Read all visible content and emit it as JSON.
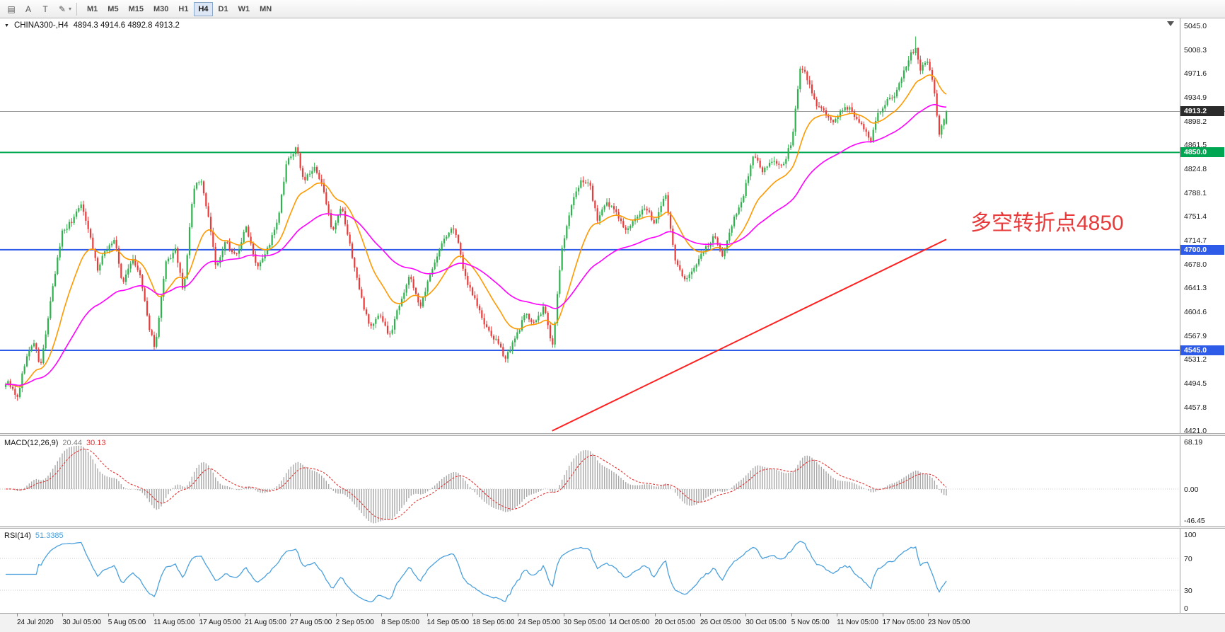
{
  "toolbar": {
    "tools": [
      {
        "id": "chart-windows",
        "glyph": "▤"
      },
      {
        "id": "cursor-text-a",
        "glyph": "A"
      },
      {
        "id": "text-label",
        "glyph": "T"
      },
      {
        "id": "draw-tool",
        "glyph": "✎"
      }
    ],
    "draw_caret": "▾",
    "timeframes": [
      "M1",
      "M5",
      "M15",
      "M30",
      "H1",
      "H4",
      "D1",
      "W1",
      "MN"
    ],
    "active_timeframe": "H4"
  },
  "chart": {
    "marker": "▼",
    "symbol_label": "CHINA300-,H4",
    "ohlc_label": "4894.3 4914.6 4892.8 4913.2",
    "annotation": {
      "text": "多空转折点4850",
      "color": "#E83A3A"
    },
    "price_axis_labels": [
      "5045.0",
      "5008.3",
      "4971.6",
      "4934.9",
      "4898.2",
      "4861.5",
      "4824.8",
      "4788.1",
      "4751.4",
      "4714.7",
      "4678.0",
      "4641.3",
      "4604.6",
      "4567.9",
      "4531.2",
      "4494.5",
      "4457.8",
      "4421.0"
    ],
    "level_chips": [
      {
        "label": "4913.2",
        "price": 4913.2,
        "bg": "#2B2B2B",
        "type": "current-price"
      },
      {
        "label": "4850.0",
        "price": 4850.0,
        "bg": "#00A651",
        "type": "hline"
      },
      {
        "label": "4700.0",
        "price": 4700.0,
        "bg": "#2E5BE8",
        "type": "hline"
      },
      {
        "label": "4545.0",
        "price": 4545.0,
        "bg": "#2E5BE8",
        "type": "hline"
      }
    ]
  },
  "indicators": {
    "macd": {
      "name": "MACD(12,26,9)",
      "value1": "20.44",
      "value2": "30.13",
      "axis_labels": [
        "68.19",
        "0.00",
        "-46.45"
      ]
    },
    "rsi": {
      "name": "RSI(14)",
      "value": "51.3385",
      "axis_labels": [
        "100",
        "70",
        "30",
        "0"
      ]
    }
  },
  "chart_data": {
    "type": "candlestick",
    "symbol": "CHINA300-",
    "timeframe": "H4",
    "last_ohlc": {
      "open": 4894.3,
      "high": 4914.6,
      "low": 4892.8,
      "close": 4913.2
    },
    "y_range": [
      4421.0,
      5045.0
    ],
    "candle_count": 400,
    "last_close": 4913.2,
    "close_path_anchors": [
      [
        0.004,
        4495
      ],
      [
        0.012,
        4468
      ],
      [
        0.021,
        4530
      ],
      [
        0.03,
        4558
      ],
      [
        0.037,
        4518
      ],
      [
        0.05,
        4640
      ],
      [
        0.06,
        4728
      ],
      [
        0.071,
        4745
      ],
      [
        0.079,
        4772
      ],
      [
        0.087,
        4740
      ],
      [
        0.098,
        4668
      ],
      [
        0.106,
        4700
      ],
      [
        0.116,
        4716
      ],
      [
        0.124,
        4645
      ],
      [
        0.134,
        4686
      ],
      [
        0.143,
        4660
      ],
      [
        0.151,
        4590
      ],
      [
        0.159,
        4548
      ],
      [
        0.17,
        4678
      ],
      [
        0.181,
        4700
      ],
      [
        0.189,
        4630
      ],
      [
        0.199,
        4788
      ],
      [
        0.207,
        4812
      ],
      [
        0.217,
        4740
      ],
      [
        0.224,
        4670
      ],
      [
        0.234,
        4712
      ],
      [
        0.245,
        4690
      ],
      [
        0.256,
        4736
      ],
      [
        0.267,
        4675
      ],
      [
        0.278,
        4700
      ],
      [
        0.289,
        4742
      ],
      [
        0.299,
        4835
      ],
      [
        0.309,
        4856
      ],
      [
        0.317,
        4806
      ],
      [
        0.328,
        4826
      ],
      [
        0.339,
        4790
      ],
      [
        0.347,
        4722
      ],
      [
        0.357,
        4766
      ],
      [
        0.367,
        4700
      ],
      [
        0.378,
        4625
      ],
      [
        0.388,
        4580
      ],
      [
        0.398,
        4602
      ],
      [
        0.408,
        4565
      ],
      [
        0.419,
        4620
      ],
      [
        0.43,
        4660
      ],
      [
        0.441,
        4610
      ],
      [
        0.455,
        4680
      ],
      [
        0.466,
        4716
      ],
      [
        0.477,
        4736
      ],
      [
        0.488,
        4660
      ],
      [
        0.5,
        4620
      ],
      [
        0.51,
        4580
      ],
      [
        0.521,
        4560
      ],
      [
        0.531,
        4534
      ],
      [
        0.541,
        4560
      ],
      [
        0.552,
        4600
      ],
      [
        0.563,
        4588
      ],
      [
        0.573,
        4612
      ],
      [
        0.581,
        4545
      ],
      [
        0.591,
        4700
      ],
      [
        0.602,
        4770
      ],
      [
        0.612,
        4810
      ],
      [
        0.621,
        4800
      ],
      [
        0.629,
        4746
      ],
      [
        0.639,
        4770
      ],
      [
        0.649,
        4760
      ],
      [
        0.66,
        4726
      ],
      [
        0.67,
        4750
      ],
      [
        0.68,
        4766
      ],
      [
        0.69,
        4740
      ],
      [
        0.701,
        4790
      ],
      [
        0.712,
        4680
      ],
      [
        0.722,
        4655
      ],
      [
        0.732,
        4670
      ],
      [
        0.743,
        4700
      ],
      [
        0.753,
        4720
      ],
      [
        0.763,
        4690
      ],
      [
        0.773,
        4746
      ],
      [
        0.784,
        4780
      ],
      [
        0.795,
        4850
      ],
      [
        0.805,
        4820
      ],
      [
        0.815,
        4836
      ],
      [
        0.826,
        4830
      ],
      [
        0.836,
        4868
      ],
      [
        0.845,
        4985
      ],
      [
        0.853,
        4960
      ],
      [
        0.861,
        4925
      ],
      [
        0.87,
        4915
      ],
      [
        0.878,
        4895
      ],
      [
        0.886,
        4910
      ],
      [
        0.895,
        4920
      ],
      [
        0.903,
        4905
      ],
      [
        0.911,
        4890
      ],
      [
        0.919,
        4865
      ],
      [
        0.927,
        4910
      ],
      [
        0.936,
        4928
      ],
      [
        0.944,
        4936
      ],
      [
        0.953,
        4965
      ],
      [
        0.961,
        4998
      ],
      [
        0.967,
        5010
      ],
      [
        0.972,
        4975
      ],
      [
        0.979,
        4990
      ],
      [
        0.986,
        4958
      ],
      [
        0.992,
        4876
      ],
      [
        1.0,
        4913.2
      ]
    ],
    "horizontal_lines": [
      {
        "price": 4850.0,
        "color": "#00A651",
        "width": 2
      },
      {
        "price": 4700.0,
        "color": "#2E5BE8",
        "width": 2
      },
      {
        "price": 4545.0,
        "color": "#2E5BE8",
        "width": 2
      }
    ],
    "current_price_line": {
      "price": 4913.2,
      "color": "#999999",
      "width": 1
    },
    "trendline": {
      "x1_frac": 0.581,
      "price1": 4421.0,
      "x2_frac": 1.0,
      "price2": 4716.0,
      "color": "#FF2020",
      "width": 2
    },
    "moving_averages": [
      {
        "period": 20,
        "color": "#FF9900"
      },
      {
        "period": 60,
        "color": "#FF00FF"
      }
    ],
    "candle_colors": {
      "up": "#2FB24D",
      "down": "#EA3B3B"
    },
    "macd": {
      "fast": 12,
      "slow": 26,
      "signal": 9,
      "last_macd": 20.44,
      "last_signal": 30.13,
      "y_range": [
        -46.45,
        68.19
      ],
      "hist_color": "#A8A8A8",
      "signal_color": "#E23232",
      "value1_color": "#808080",
      "value2_color": "#E23232"
    },
    "rsi": {
      "period": 14,
      "last_value": 51.3385,
      "levels": [
        70,
        30
      ],
      "y_range": [
        0,
        100
      ],
      "color": "#4AA0DC"
    },
    "time_axis_labels": [
      "24 Jul 2020",
      "30 Jul 05:00",
      "5 Aug 05:00",
      "11 Aug 05:00",
      "17 Aug 05:00",
      "21 Aug 05:00",
      "27 Aug 05:00",
      "2 Sep 05:00",
      "8 Sep 05:00",
      "14 Sep 05:00",
      "18 Sep 05:00",
      "24 Sep 05:00",
      "30 Sep 05:00",
      "14 Oct 05:00",
      "20 Oct 05:00",
      "26 Oct 05:00",
      "30 Oct 05:00",
      "5 Nov 05:00",
      "11 Nov 05:00",
      "17 Nov 05:00",
      "23 Nov 05:00"
    ]
  }
}
